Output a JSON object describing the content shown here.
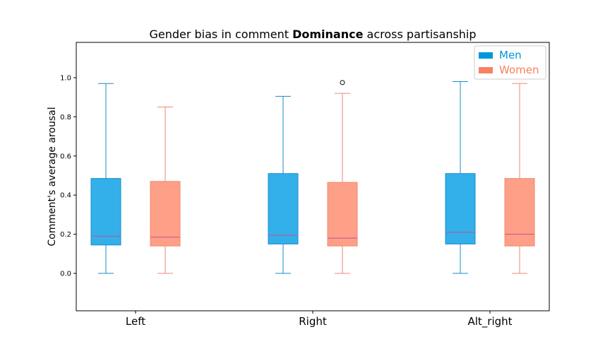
{
  "chart_data": {
    "type": "box",
    "title_parts": [
      "Gender bias in comment ",
      "Dominance",
      " across partisanship"
    ],
    "xlabel": "",
    "ylabel": "Comment's average arousal",
    "ylim": [
      -0.19,
      1.18
    ],
    "yticks": [
      "0.0",
      "0.2",
      "0.4",
      "0.6",
      "0.8",
      "1.0"
    ],
    "categories": [
      "Left",
      "Right",
      "Alt_right"
    ],
    "legend_position": "top-right",
    "series": [
      {
        "name": "Men",
        "color": "#33b0ea",
        "edge_color": "#1a8ccc",
        "median_color": "#c8508c",
        "boxes": [
          {
            "whisker_low": 0.0,
            "q1": 0.145,
            "median": 0.19,
            "q3": 0.485,
            "whisker_high": 0.97,
            "outliers": []
          },
          {
            "whisker_low": 0.0,
            "q1": 0.15,
            "median": 0.195,
            "q3": 0.51,
            "whisker_high": 0.905,
            "outliers": []
          },
          {
            "whisker_low": 0.0,
            "q1": 0.15,
            "median": 0.21,
            "q3": 0.51,
            "whisker_high": 0.98,
            "outliers": []
          }
        ]
      },
      {
        "name": "Women",
        "color": "#fe9f87",
        "edge_color": "#f08a70",
        "median_color": "#c8508c",
        "boxes": [
          {
            "whisker_low": 0.0,
            "q1": 0.14,
            "median": 0.185,
            "q3": 0.47,
            "whisker_high": 0.85,
            "outliers": []
          },
          {
            "whisker_low": 0.0,
            "q1": 0.14,
            "median": 0.18,
            "q3": 0.465,
            "whisker_high": 0.92,
            "outliers": [
              0.975
            ]
          },
          {
            "whisker_low": 0.0,
            "q1": 0.14,
            "median": 0.2,
            "q3": 0.485,
            "whisker_high": 0.97,
            "outliers": []
          }
        ]
      }
    ],
    "legend_colors": {
      "Men": "#0096dd",
      "Women": "#fa8060"
    }
  }
}
